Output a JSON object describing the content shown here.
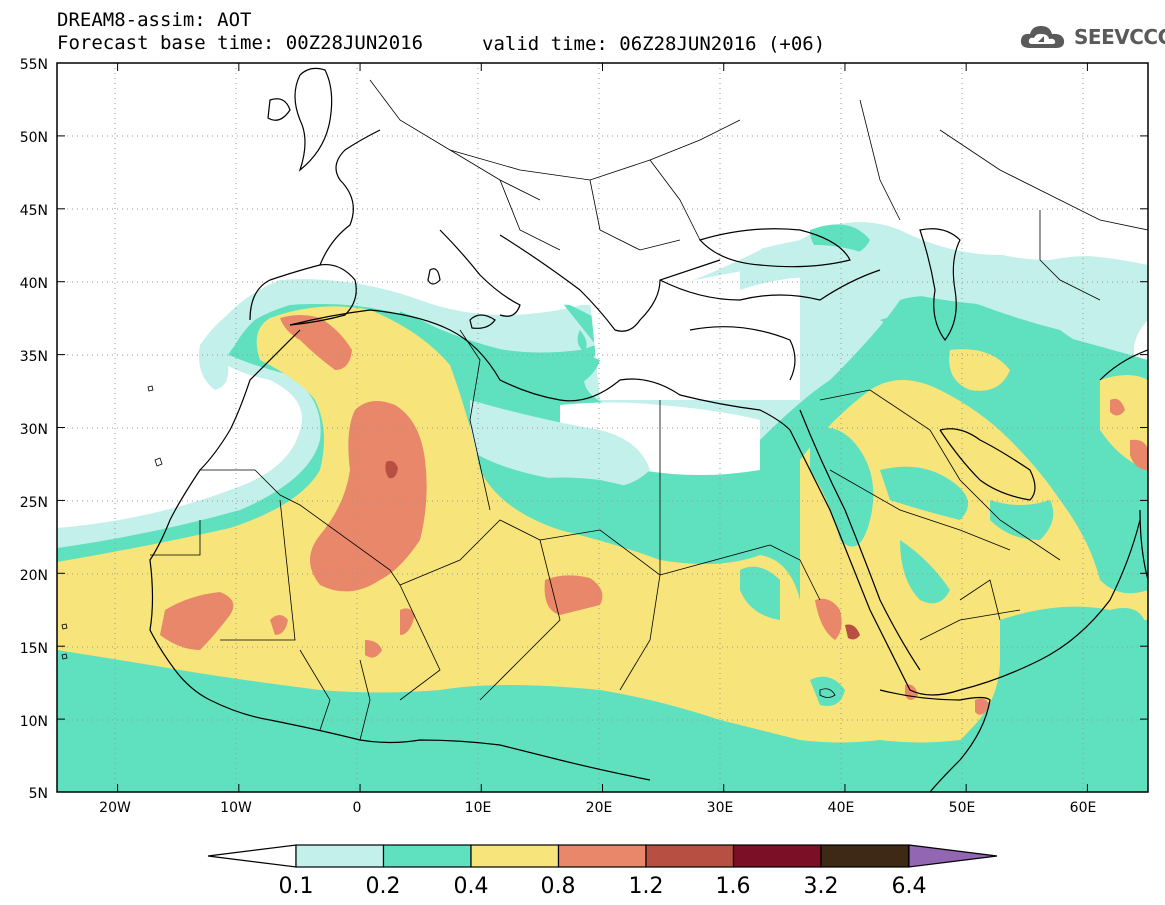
{
  "header": {
    "title": "DREAM8-assim: AOT",
    "base_time": "Forecast base time: 00Z28JUN2016",
    "valid_time": "valid time: 06Z28JUN2016 (+06)"
  },
  "logo": {
    "icon": "cloud-icon",
    "text": "SEEVCCC"
  },
  "map": {
    "lon_range": [
      -25,
      65
    ],
    "lat_range": [
      5,
      55
    ],
    "lon_ticks": [
      "20W",
      "10W",
      "0",
      "10E",
      "20E",
      "30E",
      "40E",
      "50E",
      "60E"
    ],
    "lat_ticks": [
      "55N",
      "50N",
      "45N",
      "40N",
      "35N",
      "30N",
      "25N",
      "20N",
      "15N",
      "10N",
      "5N"
    ],
    "grid": "dotted"
  },
  "colorbar": {
    "colors": [
      "#c4f0ec",
      "#5fe0be",
      "#f7e47a",
      "#e9876a",
      "#b84f43",
      "#7a0f26",
      "#3e2816",
      "#9266b2"
    ],
    "labels": [
      "0.1",
      "0.2",
      "0.4",
      "0.8",
      "1.2",
      "1.6",
      "3.2",
      "6.4"
    ]
  }
}
